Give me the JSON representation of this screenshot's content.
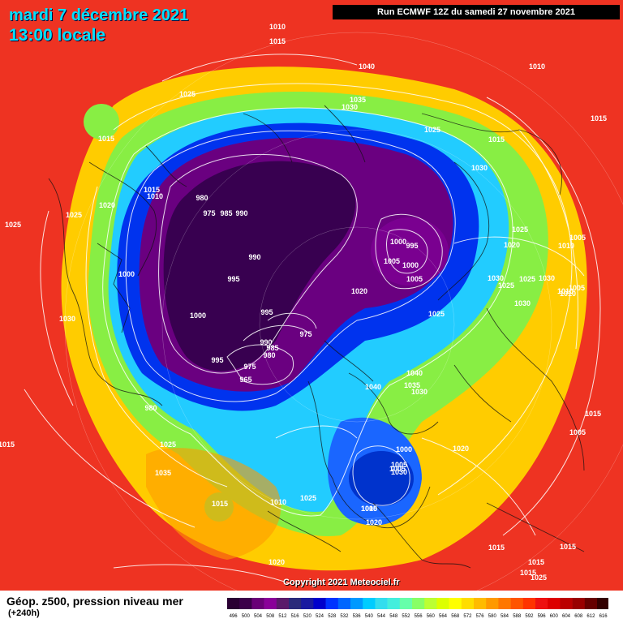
{
  "header": {
    "date_line": "mardi 7 décembre 2021",
    "time_line": "13:00 locale",
    "run_info": "Run ECMWF 12Z du samedi 27 novembre 2021"
  },
  "copyright": "Copyright 2021 Meteociel.fr",
  "footer": {
    "parameter": "Géop. z500, pression niveau mer",
    "lead_time": "(+240h)"
  },
  "scale": {
    "labels": [
      "496",
      "500",
      "504",
      "508",
      "512",
      "516",
      "520",
      "524",
      "528",
      "532",
      "536",
      "540",
      "544",
      "548",
      "552",
      "556",
      "560",
      "564",
      "568",
      "572",
      "576",
      "580",
      "584",
      "588",
      "592",
      "596",
      "600",
      "604",
      "608",
      "612",
      "616"
    ],
    "colors": [
      "#2a0033",
      "#3c004a",
      "#6a0077",
      "#8a0099",
      "#5a1a6a",
      "#2a2a7a",
      "#1a1aa0",
      "#0000cc",
      "#0033ff",
      "#0066ff",
      "#0099ff",
      "#00ccff",
      "#33ddee",
      "#44eedd",
      "#66ffaa",
      "#88ff66",
      "#bbff33",
      "#ddff00",
      "#ffff00",
      "#ffdd00",
      "#ffbb00",
      "#ff9900",
      "#ff7700",
      "#ff5500",
      "#ff3300",
      "#ee1111",
      "#dd0000",
      "#bb0000",
      "#990000",
      "#660000",
      "#330000"
    ]
  },
  "isobars": [
    {
      "text": "1010"
    },
    {
      "text": "1015"
    },
    {
      "text": "1040"
    },
    {
      "text": "1010"
    },
    {
      "text": "1025"
    },
    {
      "text": "1035"
    },
    {
      "text": "1030"
    },
    {
      "text": "1015"
    },
    {
      "text": "1025"
    },
    {
      "text": "1015"
    },
    {
      "text": "1015"
    },
    {
      "text": "1030"
    },
    {
      "text": "1015"
    },
    {
      "text": "1010"
    },
    {
      "text": "980"
    },
    {
      "text": "1020"
    },
    {
      "text": "975"
    },
    {
      "text": "985"
    },
    {
      "text": "990"
    },
    {
      "text": "1025"
    },
    {
      "text": "1025"
    },
    {
      "text": "1000"
    },
    {
      "text": "995"
    },
    {
      "text": "1025"
    },
    {
      "text": "1020"
    },
    {
      "text": "1010"
    },
    {
      "text": "1005"
    },
    {
      "text": "1000"
    },
    {
      "text": "990"
    },
    {
      "text": "1005"
    },
    {
      "text": "1000"
    },
    {
      "text": "1005"
    },
    {
      "text": "995"
    },
    {
      "text": "1030"
    },
    {
      "text": "1025"
    },
    {
      "text": "1025"
    },
    {
      "text": "1030"
    },
    {
      "text": "1020"
    },
    {
      "text": "995"
    },
    {
      "text": "1025"
    },
    {
      "text": "1030"
    },
    {
      "text": "1000"
    },
    {
      "text": "1010"
    },
    {
      "text": "1030"
    },
    {
      "text": "975"
    },
    {
      "text": "990"
    },
    {
      "text": "985"
    },
    {
      "text": "980"
    },
    {
      "text": "995"
    },
    {
      "text": "975"
    },
    {
      "text": "965"
    },
    {
      "text": "1040"
    },
    {
      "text": "1035"
    },
    {
      "text": "1030"
    },
    {
      "text": "1040"
    },
    {
      "text": "980"
    },
    {
      "text": "1015"
    },
    {
      "text": "1000"
    },
    {
      "text": "1020"
    },
    {
      "text": "1015"
    },
    {
      "text": "1025"
    },
    {
      "text": "1035"
    },
    {
      "text": "1005"
    },
    {
      "text": "1005"
    },
    {
      "text": "1030"
    },
    {
      "text": "1015"
    },
    {
      "text": "1025"
    },
    {
      "text": "1010"
    },
    {
      "text": "1005"
    },
    {
      "text": "1020"
    },
    {
      "text": "1015"
    },
    {
      "text": "1015"
    },
    {
      "text": "1015"
    },
    {
      "text": "1015"
    },
    {
      "text": "1025"
    },
    {
      "text": "1020"
    },
    {
      "text": "1010"
    },
    {
      "text": "1005"
    },
    {
      "text": "1005"
    },
    {
      "text": "1010"
    }
  ]
}
